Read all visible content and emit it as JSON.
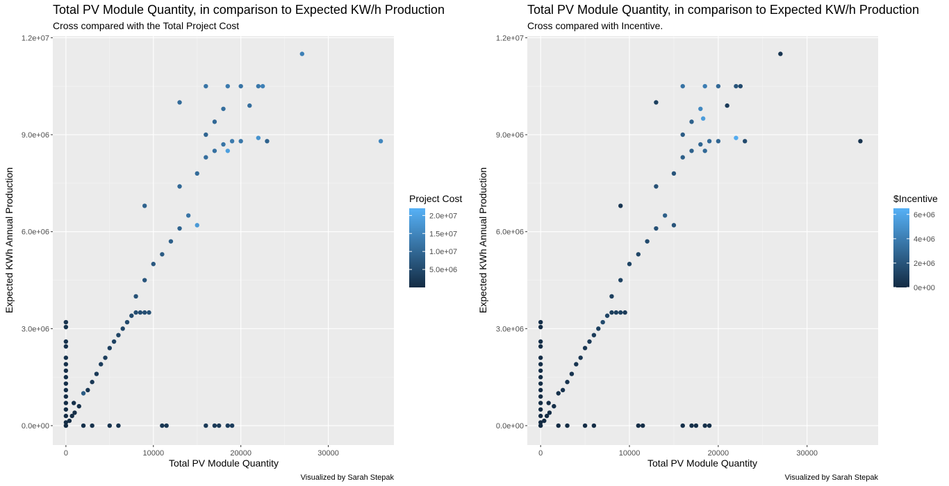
{
  "charts": [
    {
      "title": "Total PV Module Quantity, in comparison to Expected KW/h Production",
      "subtitle": "Cross compared with the Total Project Cost",
      "caption": "Visualized by Sarah Stepak",
      "legend_title": "Project Cost",
      "legend_labels": [
        "5.0e+06",
        "1.0e+07",
        "1.5e+07",
        "2.0e+07"
      ]
    },
    {
      "title": "Total PV Module Quantity, in comparison to Expected KW/h Production",
      "subtitle": "Cross compared with Incentive.",
      "caption": "Visualized by Sarah Stepak",
      "legend_title": "$Incentive",
      "legend_labels": [
        "0e+00",
        "2e+06",
        "4e+06",
        "6e+06"
      ]
    }
  ],
  "chart_data": [
    {
      "type": "scatter",
      "title": "Total PV Module Quantity, in comparison to Expected KW/h Production",
      "subtitle": "Cross compared with the Total Project Cost",
      "xlabel": "Total PV Module Quantity",
      "ylabel": "Expected KWh Annual Production",
      "xlim": [
        -1500,
        37500
      ],
      "ylim": [
        -600000,
        12050000
      ],
      "x_ticks": [
        0,
        10000,
        20000,
        30000
      ],
      "x_tick_labels": [
        "0",
        "10000",
        "20000",
        "30000"
      ],
      "y_ticks": [
        0,
        3000000,
        6000000,
        9000000,
        12000000
      ],
      "y_tick_labels": [
        "0.0e+00",
        "3.0e+06",
        "6.0e+06",
        "9.0e+06",
        "1.2e+07"
      ],
      "color_variable": "Project Cost",
      "color_range": [
        0,
        22000000
      ],
      "legend_breaks": [
        5000000,
        10000000,
        15000000,
        20000000
      ],
      "legend_position": "right",
      "colors": {
        "low": "#132B43",
        "high": "#56B1F7",
        "panel": "#EBEBEB",
        "grid": "#FFFFFF"
      },
      "points": [
        {
          "x": 0,
          "y": 3200000,
          "c": 1500000
        },
        {
          "x": 0,
          "y": 3050000,
          "c": 1400000
        },
        {
          "x": 0,
          "y": 2600000,
          "c": 1300000
        },
        {
          "x": 0,
          "y": 2450000,
          "c": 1200000
        },
        {
          "x": 0,
          "y": 2100000,
          "c": 1100000
        },
        {
          "x": 0,
          "y": 1900000,
          "c": 1000000
        },
        {
          "x": 0,
          "y": 1700000,
          "c": 900000
        },
        {
          "x": 0,
          "y": 1500000,
          "c": 800000
        },
        {
          "x": 0,
          "y": 1300000,
          "c": 700000
        },
        {
          "x": 0,
          "y": 1100000,
          "c": 600000
        },
        {
          "x": 0,
          "y": 900000,
          "c": 500000
        },
        {
          "x": 0,
          "y": 700000,
          "c": 400000
        },
        {
          "x": 0,
          "y": 500000,
          "c": 300000
        },
        {
          "x": 0,
          "y": 300000,
          "c": 200000
        },
        {
          "x": 0,
          "y": 100000,
          "c": 100000
        },
        {
          "x": 0,
          "y": 0,
          "c": 50000
        },
        {
          "x": 400,
          "y": 150000,
          "c": 300000
        },
        {
          "x": 700,
          "y": 300000,
          "c": 500000
        },
        {
          "x": 900,
          "y": 700000,
          "c": 800000
        },
        {
          "x": 1000,
          "y": 400000,
          "c": 600000
        },
        {
          "x": 1500,
          "y": 600000,
          "c": 1000000
        },
        {
          "x": 2000,
          "y": 1000000,
          "c": 8000000
        },
        {
          "x": 2500,
          "y": 1100000,
          "c": 1800000
        },
        {
          "x": 3000,
          "y": 1350000,
          "c": 2200000
        },
        {
          "x": 3500,
          "y": 1600000,
          "c": 2600000
        },
        {
          "x": 4000,
          "y": 1900000,
          "c": 3000000
        },
        {
          "x": 4500,
          "y": 2100000,
          "c": 3200000
        },
        {
          "x": 5000,
          "y": 2400000,
          "c": 3500000
        },
        {
          "x": 5500,
          "y": 2600000,
          "c": 3800000
        },
        {
          "x": 6000,
          "y": 2800000,
          "c": 4200000
        },
        {
          "x": 6500,
          "y": 3000000,
          "c": 4600000
        },
        {
          "x": 7000,
          "y": 3200000,
          "c": 5000000
        },
        {
          "x": 7500,
          "y": 3400000,
          "c": 5200000
        },
        {
          "x": 8000,
          "y": 3500000,
          "c": 5500000
        },
        {
          "x": 8500,
          "y": 3500000,
          "c": 5600000
        },
        {
          "x": 9000,
          "y": 3500000,
          "c": 5800000
        },
        {
          "x": 9500,
          "y": 3500000,
          "c": 6000000
        },
        {
          "x": 8000,
          "y": 4000000,
          "c": 6200000
        },
        {
          "x": 9000,
          "y": 4500000,
          "c": 6800000
        },
        {
          "x": 10000,
          "y": 5000000,
          "c": 7400000
        },
        {
          "x": 11000,
          "y": 5300000,
          "c": 7800000
        },
        {
          "x": 12000,
          "y": 5700000,
          "c": 8500000
        },
        {
          "x": 13000,
          "y": 6100000,
          "c": 9200000
        },
        {
          "x": 14000,
          "y": 6500000,
          "c": 12000000
        },
        {
          "x": 15000,
          "y": 6200000,
          "c": 18000000
        },
        {
          "x": 9000,
          "y": 6800000,
          "c": 9000000
        },
        {
          "x": 13000,
          "y": 7400000,
          "c": 10000000
        },
        {
          "x": 15000,
          "y": 7800000,
          "c": 10500000
        },
        {
          "x": 16000,
          "y": 8300000,
          "c": 11000000
        },
        {
          "x": 17000,
          "y": 8500000,
          "c": 11500000
        },
        {
          "x": 18000,
          "y": 8700000,
          "c": 12000000
        },
        {
          "x": 19000,
          "y": 8800000,
          "c": 13000000
        },
        {
          "x": 18500,
          "y": 8500000,
          "c": 19000000
        },
        {
          "x": 20000,
          "y": 8800000,
          "c": 12500000
        },
        {
          "x": 22000,
          "y": 8900000,
          "c": 17000000
        },
        {
          "x": 23000,
          "y": 8800000,
          "c": 9000000
        },
        {
          "x": 16000,
          "y": 9000000,
          "c": 9500000
        },
        {
          "x": 17000,
          "y": 9400000,
          "c": 10000000
        },
        {
          "x": 18000,
          "y": 9800000,
          "c": 11000000
        },
        {
          "x": 13000,
          "y": 10000000,
          "c": 10500000
        },
        {
          "x": 16000,
          "y": 10500000,
          "c": 12000000
        },
        {
          "x": 18500,
          "y": 10500000,
          "c": 13000000
        },
        {
          "x": 20000,
          "y": 10500000,
          "c": 12000000
        },
        {
          "x": 22000,
          "y": 10500000,
          "c": 12500000
        },
        {
          "x": 22500,
          "y": 10500000,
          "c": 14000000
        },
        {
          "x": 21000,
          "y": 9900000,
          "c": 11000000
        },
        {
          "x": 27000,
          "y": 11500000,
          "c": 14000000
        },
        {
          "x": 36000,
          "y": 8800000,
          "c": 15000000
        },
        {
          "x": 2000,
          "y": 0,
          "c": 1000000
        },
        {
          "x": 3000,
          "y": 0,
          "c": 1200000
        },
        {
          "x": 5000,
          "y": 0,
          "c": 1500000
        },
        {
          "x": 6000,
          "y": 0,
          "c": 1500000
        },
        {
          "x": 11000,
          "y": 0,
          "c": 2000000
        },
        {
          "x": 11500,
          "y": 0,
          "c": 2000000
        },
        {
          "x": 16000,
          "y": 0,
          "c": 2500000
        },
        {
          "x": 17000,
          "y": 0,
          "c": 2500000
        },
        {
          "x": 17500,
          "y": 0,
          "c": 2500000
        },
        {
          "x": 18500,
          "y": 0,
          "c": 3000000
        },
        {
          "x": 19000,
          "y": 0,
          "c": 3000000
        }
      ]
    },
    {
      "type": "scatter",
      "title": "Total PV Module Quantity, in comparison to Expected KW/h Production",
      "subtitle": "Cross compared with Incentive.",
      "xlabel": "Total PV Module Quantity",
      "ylabel": "Expected KWh Annual Production",
      "xlim": [
        -1500,
        38000
      ],
      "ylim": [
        -600000,
        12050000
      ],
      "x_ticks": [
        0,
        10000,
        20000,
        30000
      ],
      "x_tick_labels": [
        "0",
        "10000",
        "20000",
        "30000"
      ],
      "y_ticks": [
        0,
        3000000,
        6000000,
        9000000,
        12000000
      ],
      "y_tick_labels": [
        "0.0e+00",
        "3.0e+06",
        "6.0e+06",
        "9.0e+06",
        "1.2e+07"
      ],
      "color_variable": "$Incentive",
      "color_range": [
        0,
        6500000
      ],
      "legend_breaks": [
        0,
        2000000,
        4000000,
        6000000
      ],
      "legend_position": "right",
      "colors": {
        "low": "#132B43",
        "high": "#56B1F7",
        "panel": "#EBEBEB",
        "grid": "#FFFFFF"
      },
      "points": [
        {
          "x": 0,
          "y": 3200000,
          "c": 200000
        },
        {
          "x": 0,
          "y": 3050000,
          "c": 150000
        },
        {
          "x": 0,
          "y": 2600000,
          "c": 150000
        },
        {
          "x": 0,
          "y": 2450000,
          "c": 100000
        },
        {
          "x": 0,
          "y": 2100000,
          "c": 100000
        },
        {
          "x": 0,
          "y": 1900000,
          "c": 100000
        },
        {
          "x": 0,
          "y": 1700000,
          "c": 100000
        },
        {
          "x": 0,
          "y": 1500000,
          "c": 80000
        },
        {
          "x": 0,
          "y": 1300000,
          "c": 80000
        },
        {
          "x": 0,
          "y": 1100000,
          "c": 60000
        },
        {
          "x": 0,
          "y": 900000,
          "c": 50000
        },
        {
          "x": 0,
          "y": 700000,
          "c": 40000
        },
        {
          "x": 0,
          "y": 500000,
          "c": 30000
        },
        {
          "x": 0,
          "y": 300000,
          "c": 20000
        },
        {
          "x": 0,
          "y": 100000,
          "c": 10000
        },
        {
          "x": 0,
          "y": 0,
          "c": 5000
        },
        {
          "x": 400,
          "y": 150000,
          "c": 50000
        },
        {
          "x": 700,
          "y": 300000,
          "c": 80000
        },
        {
          "x": 900,
          "y": 700000,
          "c": 100000
        },
        {
          "x": 1000,
          "y": 400000,
          "c": 100000
        },
        {
          "x": 1500,
          "y": 600000,
          "c": 200000
        },
        {
          "x": 2000,
          "y": 1000000,
          "c": 300000
        },
        {
          "x": 2500,
          "y": 1100000,
          "c": 350000
        },
        {
          "x": 3000,
          "y": 1350000,
          "c": 400000
        },
        {
          "x": 3500,
          "y": 1600000,
          "c": 450000
        },
        {
          "x": 4000,
          "y": 1900000,
          "c": 500000
        },
        {
          "x": 4500,
          "y": 2100000,
          "c": 550000
        },
        {
          "x": 5000,
          "y": 2400000,
          "c": 600000
        },
        {
          "x": 5500,
          "y": 2600000,
          "c": 700000
        },
        {
          "x": 6000,
          "y": 2800000,
          "c": 800000
        },
        {
          "x": 6500,
          "y": 3000000,
          "c": 1000000
        },
        {
          "x": 7000,
          "y": 3200000,
          "c": 1500000
        },
        {
          "x": 7500,
          "y": 3400000,
          "c": 1200000
        },
        {
          "x": 8000,
          "y": 3500000,
          "c": 900000
        },
        {
          "x": 8500,
          "y": 3500000,
          "c": 1000000
        },
        {
          "x": 9000,
          "y": 3500000,
          "c": 1100000
        },
        {
          "x": 9500,
          "y": 3500000,
          "c": 800000
        },
        {
          "x": 8000,
          "y": 4000000,
          "c": 1000000
        },
        {
          "x": 9000,
          "y": 4500000,
          "c": 1100000
        },
        {
          "x": 10000,
          "y": 5000000,
          "c": 1200000
        },
        {
          "x": 11000,
          "y": 5300000,
          "c": 1300000
        },
        {
          "x": 12000,
          "y": 5700000,
          "c": 1500000
        },
        {
          "x": 13000,
          "y": 6100000,
          "c": 1800000
        },
        {
          "x": 14000,
          "y": 6500000,
          "c": 2500000
        },
        {
          "x": 15000,
          "y": 6200000,
          "c": 2000000
        },
        {
          "x": 9000,
          "y": 6800000,
          "c": 500000
        },
        {
          "x": 13000,
          "y": 7400000,
          "c": 1800000
        },
        {
          "x": 15000,
          "y": 7800000,
          "c": 2000000
        },
        {
          "x": 16000,
          "y": 8300000,
          "c": 2500000
        },
        {
          "x": 17000,
          "y": 8500000,
          "c": 2600000
        },
        {
          "x": 18000,
          "y": 8700000,
          "c": 2800000
        },
        {
          "x": 18500,
          "y": 8500000,
          "c": 3000000
        },
        {
          "x": 19000,
          "y": 8800000,
          "c": 3000000
        },
        {
          "x": 20000,
          "y": 8800000,
          "c": 2800000
        },
        {
          "x": 22000,
          "y": 8900000,
          "c": 6200000
        },
        {
          "x": 23000,
          "y": 8800000,
          "c": 1500000
        },
        {
          "x": 16000,
          "y": 9000000,
          "c": 2400000
        },
        {
          "x": 17000,
          "y": 9400000,
          "c": 2600000
        },
        {
          "x": 18000,
          "y": 9800000,
          "c": 4500000
        },
        {
          "x": 18300,
          "y": 9500000,
          "c": 5500000
        },
        {
          "x": 13000,
          "y": 10000000,
          "c": 1000000
        },
        {
          "x": 16000,
          "y": 10500000,
          "c": 3500000
        },
        {
          "x": 18500,
          "y": 10500000,
          "c": 4000000
        },
        {
          "x": 20000,
          "y": 10500000,
          "c": 3000000
        },
        {
          "x": 22000,
          "y": 10500000,
          "c": 2000000
        },
        {
          "x": 22500,
          "y": 10500000,
          "c": 1500000
        },
        {
          "x": 21000,
          "y": 9900000,
          "c": 800000
        },
        {
          "x": 27000,
          "y": 11500000,
          "c": 500000
        },
        {
          "x": 36000,
          "y": 8800000,
          "c": 400000
        },
        {
          "x": 2000,
          "y": 0,
          "c": 50000
        },
        {
          "x": 3000,
          "y": 0,
          "c": 80000
        },
        {
          "x": 5000,
          "y": 0,
          "c": 100000
        },
        {
          "x": 6000,
          "y": 0,
          "c": 100000
        },
        {
          "x": 11000,
          "y": 0,
          "c": 150000
        },
        {
          "x": 11500,
          "y": 0,
          "c": 150000
        },
        {
          "x": 16000,
          "y": 0,
          "c": 200000
        },
        {
          "x": 17000,
          "y": 0,
          "c": 200000
        },
        {
          "x": 17500,
          "y": 0,
          "c": 200000
        },
        {
          "x": 18500,
          "y": 0,
          "c": 250000
        },
        {
          "x": 19000,
          "y": 0,
          "c": 250000
        }
      ]
    }
  ]
}
